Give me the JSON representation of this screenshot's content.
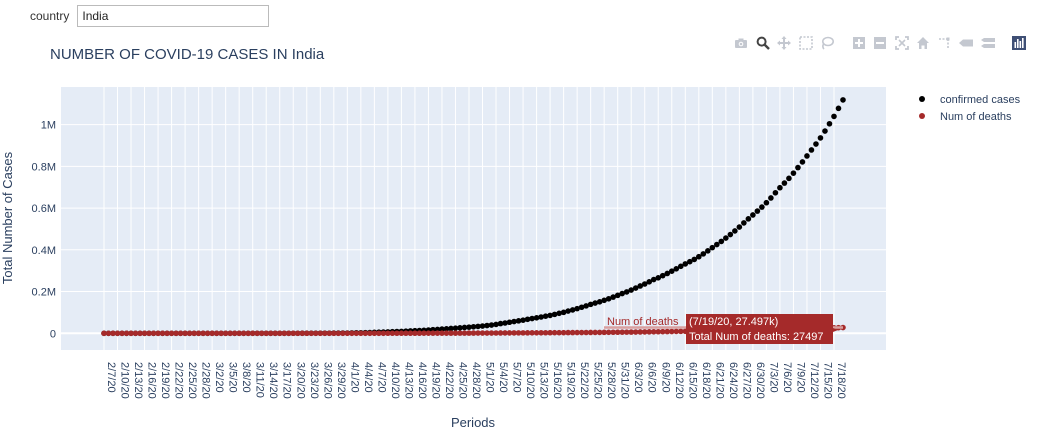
{
  "controls": {
    "country_label": "country",
    "country_value": "India"
  },
  "toolbar": {
    "icons": [
      "camera-icon",
      "zoom-icon",
      "pan-icon",
      "box-select-icon",
      "lasso-select-icon",
      "zoom-in-icon",
      "zoom-out-icon",
      "autoscale-icon",
      "reset-axes-icon",
      "spike-lines-icon",
      "hover-closest-icon",
      "hover-compare-icon",
      "plotly-logo-icon"
    ]
  },
  "colors": {
    "plot_bg": "#e5ecf6",
    "grid": "#ffffff",
    "confirmed": "#000000",
    "deaths": "#a52a2a",
    "deaths_line": "#d9a0a0"
  },
  "chart_data": {
    "type": "scatter",
    "title": "NUMBER OF COVID-19 CASES IN India",
    "xlabel": "Periods",
    "ylabel": "Total Number of Cases",
    "x_start": "2/7/20",
    "x_end": "7/19/20",
    "ylim": [
      -80000,
      1180000
    ],
    "yticks": [
      0,
      200000,
      400000,
      600000,
      800000,
      1000000
    ],
    "ytick_labels": [
      "0",
      "0.2M",
      "0.4M",
      "0.6M",
      "0.8M",
      "1M"
    ],
    "xtick_labels": [
      "2/7/20",
      "2/10/20",
      "2/13/20",
      "2/16/20",
      "2/19/20",
      "2/22/20",
      "2/25/20",
      "2/28/20",
      "3/2/20",
      "3/5/20",
      "3/8/20",
      "3/11/20",
      "3/14/20",
      "3/17/20",
      "3/20/20",
      "3/23/20",
      "3/26/20",
      "3/29/20",
      "4/1/20",
      "4/4/20",
      "4/7/20",
      "4/10/20",
      "4/13/20",
      "4/16/20",
      "4/19/20",
      "4/22/20",
      "4/25/20",
      "4/28/20",
      "5/1/20",
      "5/4/20",
      "5/7/20",
      "5/10/20",
      "5/13/20",
      "5/16/20",
      "5/19/20",
      "5/22/20",
      "5/25/20",
      "5/28/20",
      "5/31/20",
      "6/3/20",
      "6/6/20",
      "6/9/20",
      "6/12/20",
      "6/15/20",
      "6/18/20",
      "6/21/20",
      "6/24/20",
      "6/27/20",
      "6/30/20",
      "7/3/20",
      "7/6/20",
      "7/9/20",
      "7/12/20",
      "7/15/20",
      "7/18/20"
    ],
    "series": [
      {
        "name": "confirmed cases",
        "values": [
          3,
          3,
          3,
          3,
          3,
          3,
          3,
          3,
          3,
          3,
          3,
          3,
          3,
          3,
          3,
          3,
          3,
          3,
          3,
          3,
          3,
          3,
          3,
          3,
          3,
          5,
          6,
          28,
          30,
          31,
          34,
          39,
          43,
          56,
          62,
          73,
          82,
          102,
          113,
          119,
          142,
          156,
          194,
          244,
          330,
          396,
          499,
          536,
          657,
          727,
          887,
          987,
          1024,
          1251,
          1397,
          1998,
          2543,
          2567,
          3082,
          3588,
          4778,
          5311,
          5916,
          6725,
          7598,
          8446,
          9205,
          10453,
          11487,
          12322,
          13430,
          14352,
          15722,
          17615,
          18539,
          20080,
          21370,
          23077,
          24530,
          26283,
          27890,
          29451,
          31324,
          33062,
          34863,
          37257,
          39699,
          42505,
          46437,
          49400,
          52987,
          56351,
          59695,
          62808,
          67161,
          70768,
          74292,
          78055,
          81997,
          85784,
          90648,
          95698,
          100328,
          106475,
          112028,
          118226,
          124794,
          131423,
          138536,
          144950,
          150793,
          158086,
          165386,
          173491,
          181827,
          190609,
          198370,
          207191,
          216824,
          226713,
          236184,
          246622,
          257486,
          265928,
          276146,
          286605,
          297535,
          308993,
          320922,
          332424,
          343091,
          354065,
          366946,
          380532,
          395048,
          410461,
          425282,
          440215,
          456183,
          473105,
          490401,
          508953,
          528859,
          548318,
          566840,
          585481,
          604641,
          625544,
          648315,
          673165,
          697413,
          719665,
          742417,
          767296,
          793802,
          820916,
          849522,
          878254,
          906752,
          936181,
          968857,
          1003832,
          1039084,
          1077781,
          1118206
        ]
      },
      {
        "name": "Num of deaths",
        "values": [
          0,
          0,
          0,
          0,
          0,
          0,
          0,
          0,
          0,
          0,
          0,
          0,
          0,
          0,
          0,
          0,
          0,
          0,
          0,
          0,
          0,
          0,
          0,
          0,
          0,
          0,
          0,
          0,
          0,
          0,
          0,
          0,
          0,
          0,
          1,
          1,
          2,
          2,
          2,
          3,
          4,
          4,
          4,
          4,
          7,
          9,
          10,
          10,
          12,
          16,
          19,
          24,
          27,
          32,
          35,
          53,
          72,
          72,
          86,
          99,
          136,
          150,
          178,
          226,
          246,
          288,
          331,
          358,
          393,
          405,
          448,
          486,
          521,
          559,
          592,
          645,
          681,
          721,
          780,
          825,
          881,
          939,
          1008,
          1079,
          1154,
          1223,
          1323,
          1391,
          1566,
          1693,
          1785,
          1889,
          1985,
          2101,
          2212,
          2294,
          2415,
          2551,
          2649,
          2753,
          2871,
          3025,
          3156,
          3302,
          3434,
          3584,
          3726,
          3868,
          4024,
          4172,
          4337,
          4531,
          4706,
          4980,
          5185,
          5408,
          5598,
          5815,
          6088,
          6363,
          6649,
          6946,
          7207,
          7473,
          7750,
          8102,
          8498,
          8884,
          9195,
          9520,
          9900,
          11903,
          12237,
          12573,
          12948,
          13254,
          13699,
          14011,
          14476,
          14894,
          15301,
          15685,
          16095,
          16475,
          16893,
          17400,
          17834,
          18213,
          18655,
          19268,
          19693,
          20160,
          20642,
          21129,
          21604,
          22123,
          22674,
          23174,
          23727,
          24309,
          24915,
          25602,
          26273,
          26816,
          27497
        ]
      }
    ],
    "legend": [
      "confirmed cases",
      "Num of deaths"
    ],
    "legend_position": "top-right",
    "hover_label": {
      "name": "Num of deaths",
      "coords": "(7/19/20, 27.497k)",
      "value_text": "Total Num of deaths: 27497"
    }
  }
}
